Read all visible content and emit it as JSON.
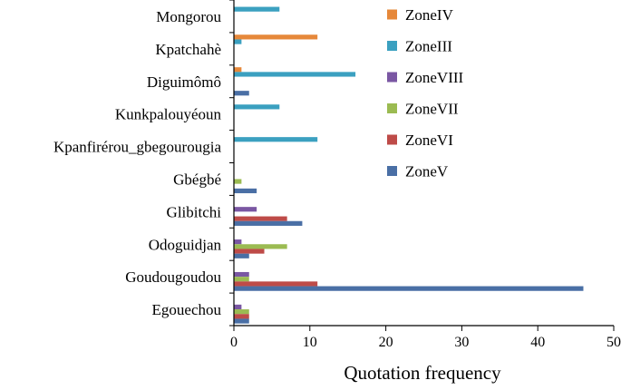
{
  "chart_data": {
    "type": "bar",
    "orientation": "horizontal",
    "title": "",
    "xlabel": "Quotation frequency",
    "ylabel": "",
    "xlim": [
      0,
      50
    ],
    "xticks": [
      0,
      10,
      20,
      30,
      40,
      50
    ],
    "grid": false,
    "legend_position": "top-right",
    "categories": [
      "Mongorou",
      "Kpatchahè",
      "Diguimômô",
      "Kunkpalouyéoun",
      "Kpanfirérou_gbegourougia",
      "Gbégbé",
      "Glibitchi",
      "Odoguidjan",
      "Goudougoudou",
      "Egouechou"
    ],
    "series": [
      {
        "name": "ZoneIV",
        "color": "#E6883A",
        "values": [
          0,
          11,
          1,
          0,
          0,
          0,
          0,
          0,
          0,
          0
        ]
      },
      {
        "name": "ZoneIII",
        "color": "#3BA0C0",
        "values": [
          6,
          1,
          16,
          6,
          11,
          0,
          0,
          0,
          0,
          0
        ]
      },
      {
        "name": "ZoneVIII",
        "color": "#7A57A3",
        "values": [
          0,
          0,
          0,
          0,
          0,
          0,
          3,
          1,
          2,
          1
        ]
      },
      {
        "name": "ZoneVII",
        "color": "#9BBB52",
        "values": [
          0,
          0,
          0,
          0,
          0,
          1,
          0,
          7,
          2,
          2
        ]
      },
      {
        "name": "ZoneVI",
        "color": "#BE4B48",
        "values": [
          0,
          0,
          0,
          0,
          0,
          0,
          7,
          4,
          11,
          2
        ]
      },
      {
        "name": "ZoneV",
        "color": "#4A6FA5",
        "values": [
          0,
          0,
          2,
          0,
          0,
          3,
          9,
          2,
          46,
          2
        ]
      }
    ]
  }
}
